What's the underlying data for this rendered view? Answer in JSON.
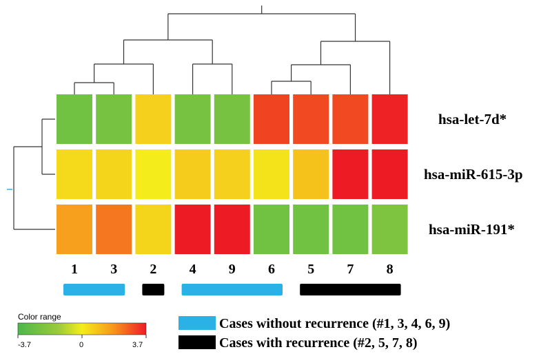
{
  "chart_data": {
    "type": "heatmap",
    "columns": [
      "1",
      "3",
      "2",
      "4",
      "9",
      "6",
      "5",
      "7",
      "8"
    ],
    "rows": [
      "hsa-let-7d*",
      "hsa-miR-615-3p",
      "hsa-miR-191*"
    ],
    "values": [
      [
        -2.6,
        -2.4,
        0.6,
        -2.4,
        -2.4,
        3.1,
        3.0,
        3.0,
        3.6
      ],
      [
        0.4,
        0.5,
        0.0,
        0.7,
        0.6,
        0.2,
        0.9,
        3.7,
        3.7
      ],
      [
        1.6,
        2.3,
        0.5,
        3.7,
        3.7,
        -2.6,
        -2.6,
        -2.6,
        -2.2
      ]
    ],
    "groups": [
      {
        "label": "Cases without recurrence (#1, 3, 4, 6, 9)",
        "color": "#2ab1e6",
        "columns": [
          "1",
          "3",
          "4",
          "9",
          "6"
        ]
      },
      {
        "label": "Cases with recurrence (#2, 5, 7, 8)",
        "color": "#000000",
        "columns": [
          "2",
          "5",
          "7",
          "8"
        ]
      }
    ],
    "column_group_bars": [
      {
        "group": 0,
        "from": 0,
        "to": 1
      },
      {
        "group": 1,
        "from": 2,
        "to": 2
      },
      {
        "group": 0,
        "from": 3,
        "to": 5
      },
      {
        "group": 1,
        "from": 6,
        "to": 8
      }
    ],
    "color_scale": {
      "title": "Color range",
      "min": -3.7,
      "mid": 0,
      "max": 3.7,
      "tick_labels": [
        "-3.7",
        "0",
        "3.7"
      ],
      "colors": [
        "#4cb848",
        "#9ccb3c",
        "#f4ed1b",
        "#f7941d",
        "#ed1c24"
      ]
    }
  }
}
